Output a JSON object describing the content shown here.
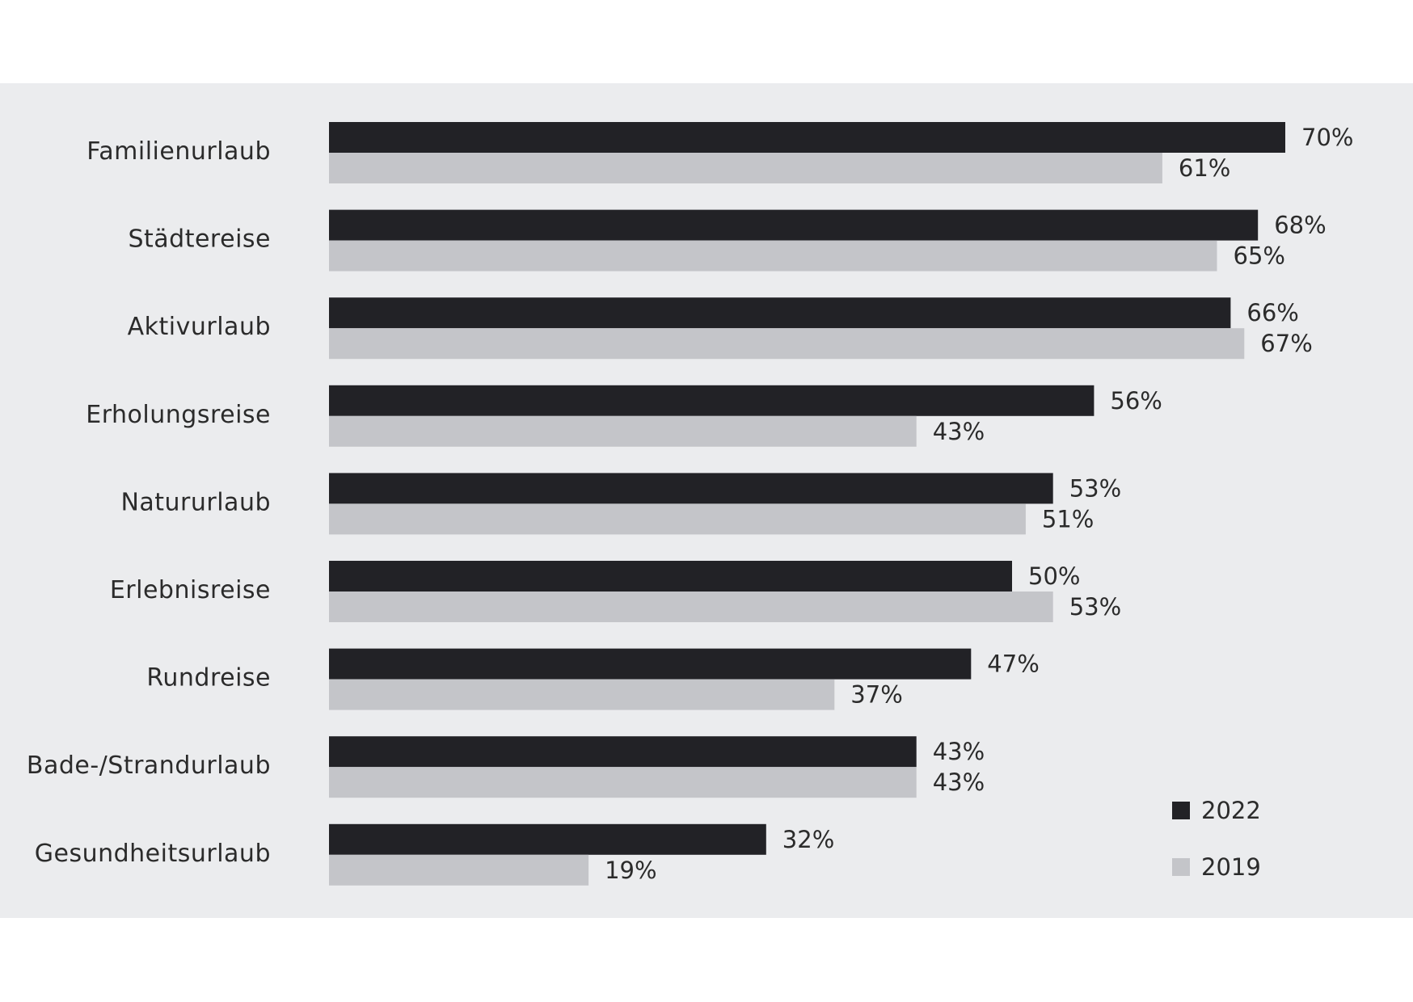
{
  "chart_data": {
    "type": "bar",
    "orientation": "horizontal",
    "categories": [
      "Familienurlaub",
      "Städtereise",
      "Aktivurlaub",
      "Erholungsreise",
      "Natururlaub",
      "Erlebnisreise",
      "Rundreise",
      "Bade-/Strandurlaub",
      "Gesundheitsurlaub"
    ],
    "series": [
      {
        "name": "2022",
        "color": "#222226",
        "values": [
          70,
          68,
          66,
          56,
          53,
          50,
          47,
          43,
          32
        ],
        "labels": [
          "70%",
          "68%",
          "66%",
          "56%",
          "53%",
          "50%",
          "47%",
          "43%",
          "32%"
        ]
      },
      {
        "name": "2019",
        "color": "#c4c5c9",
        "values": [
          61,
          65,
          67,
          43,
          51,
          53,
          37,
          43,
          19
        ],
        "labels": [
          "61%",
          "65%",
          "67%",
          "43%",
          "51%",
          "53%",
          "37%",
          "43%",
          "19%"
        ]
      }
    ],
    "xlim": [
      0,
      70
    ],
    "unit": "%",
    "grid": false,
    "legend_position": "bottom-right",
    "background": "#ebecee"
  }
}
